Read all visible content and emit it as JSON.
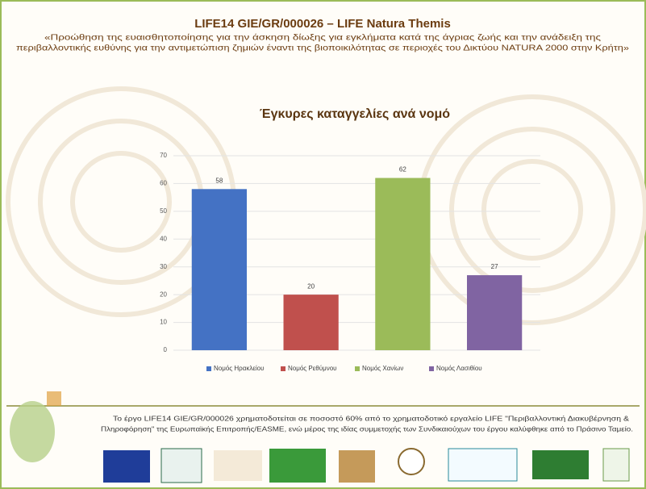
{
  "header": {
    "title": "LIFE14 GIE/GR/000026 – LIFE Natura Themis",
    "subtitle": [
      "«Προώθηση της ευαισθητοποίησης για την άσκηση δίωξης για εγκλήματα κατά της άγριας ζωής και την ανάδειξη της",
      "περιβαλλοντικής ευθύνης για την αντιμετώπιση ζημιών έναντι της βιοποικιλότητας σε περιοχές του Δικτύου NATURA 2000 στην Κρήτη»"
    ]
  },
  "chart_data": {
    "type": "bar",
    "title": "Έγκυρες καταγγελίες ανά νομό",
    "categories": [
      "Νομός Ηρακλείου",
      "Νομός Ρεθύμνου",
      "Νομός Χανίων",
      "Νομός Λασιθίου"
    ],
    "values": [
      58,
      20,
      62,
      27
    ],
    "colors": [
      "#4472c4",
      "#c0504d",
      "#9bbb59",
      "#8064a2"
    ],
    "ylim": [
      0,
      70
    ],
    "yticks": [
      0,
      10,
      20,
      30,
      40,
      50,
      60,
      70
    ],
    "grid": true,
    "legend": "bottom"
  },
  "footer": {
    "text": [
      "Το έργο LIFE14 GIE/GR/000026 χρηματοδοτείται σε ποσοστό 60% από το χρηματοδοτικό εργαλείο LIFE \"Περιβαλλοντική Διακυβέρνηση &",
      "Πληροφόρηση\" της Ευρωπαϊκής Επιτροπής/EASME, ενώ μέρος της ιδίας συμμετοχής των Συνδικαιούχων του έργου καλύφθηκε από το Πράσινο Ταμείο."
    ]
  }
}
